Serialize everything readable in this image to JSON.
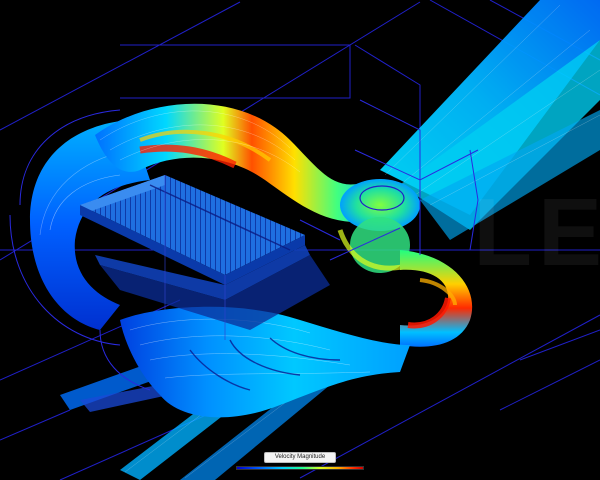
{
  "viewer": {
    "watermark_text": "LE",
    "legend": {
      "title": "Velocity Magnitude",
      "colors": [
        "#0000d0",
        "#0060ff",
        "#00d0ff",
        "#20ff90",
        "#d8ff20",
        "#ffb000",
        "#ff3000",
        "#d00000"
      ]
    }
  }
}
